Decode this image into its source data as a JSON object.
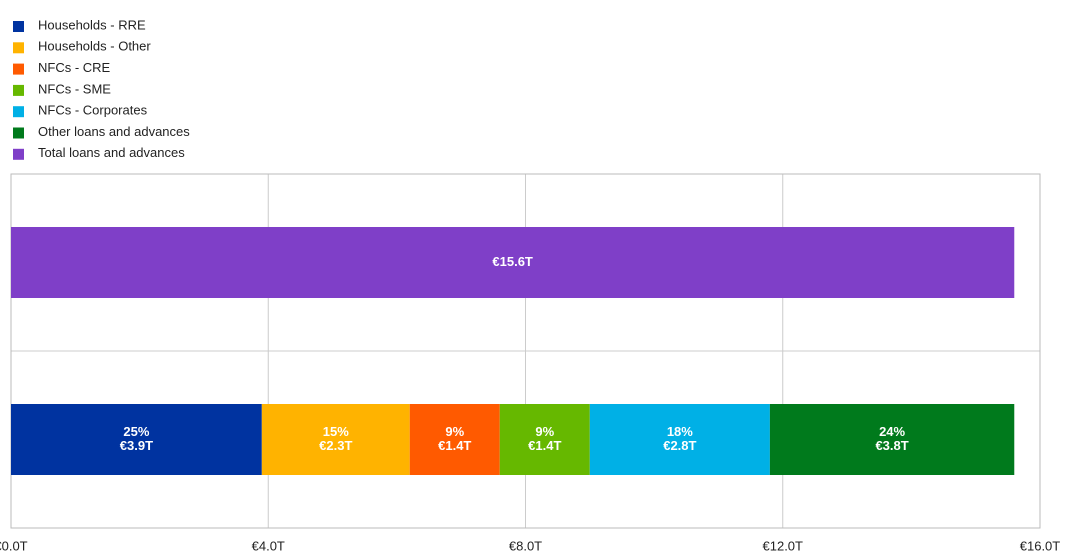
{
  "chart_data": {
    "type": "stacked_barh",
    "categories": [
      null,
      null
    ],
    "series": [
      {
        "name": "Households - RRE",
        "color": "#0033a0",
        "values": [
          null,
          3.9
        ],
        "value_labels": [
          null,
          "€3.9T"
        ],
        "shares": [
          null,
          25
        ],
        "share_labels": [
          null,
          "25%"
        ]
      },
      {
        "name": "Households - Other",
        "color": "#ffb300",
        "values": [
          null,
          2.3
        ],
        "value_labels": [
          null,
          "€2.3T"
        ],
        "shares": [
          null,
          15
        ],
        "share_labels": [
          null,
          "15%"
        ]
      },
      {
        "name": "NFCs - CRE",
        "color": "#ff5a00",
        "values": [
          null,
          1.4
        ],
        "value_labels": [
          null,
          "€1.4T"
        ],
        "shares": [
          null,
          9
        ],
        "share_labels": [
          null,
          "9%"
        ]
      },
      {
        "name": "NFCs - SME",
        "color": "#66b800",
        "values": [
          null,
          1.4
        ],
        "value_labels": [
          null,
          "€1.4T"
        ],
        "shares": [
          null,
          9
        ],
        "share_labels": [
          null,
          "9%"
        ]
      },
      {
        "name": "NFCs - Corporates",
        "color": "#00b0e6",
        "values": [
          null,
          2.8
        ],
        "value_labels": [
          null,
          "€2.8T"
        ],
        "shares": [
          null,
          18
        ],
        "share_labels": [
          null,
          "18%"
        ]
      },
      {
        "name": "Other loans and advances",
        "color": "#007a1c",
        "values": [
          null,
          3.8
        ],
        "value_labels": [
          null,
          "€3.8T"
        ],
        "shares": [
          null,
          24
        ],
        "share_labels": [
          null,
          "24%"
        ]
      },
      {
        "name": "Total loans and advances",
        "color": "#7f3fc8",
        "values": [
          15.6,
          null
        ],
        "value_labels": [
          "€15.6T",
          null
        ]
      }
    ],
    "xlim": [
      0,
      16
    ],
    "xticks": [
      {
        "value": 0,
        "label": "€0.0T"
      },
      {
        "value": 4,
        "label": "€4.0T"
      },
      {
        "value": 8,
        "label": "€8.0T"
      },
      {
        "value": 12,
        "label": "€12.0T"
      },
      {
        "value": 16,
        "label": "€16.0T"
      }
    ],
    "grid": true,
    "legend": "top-left"
  }
}
